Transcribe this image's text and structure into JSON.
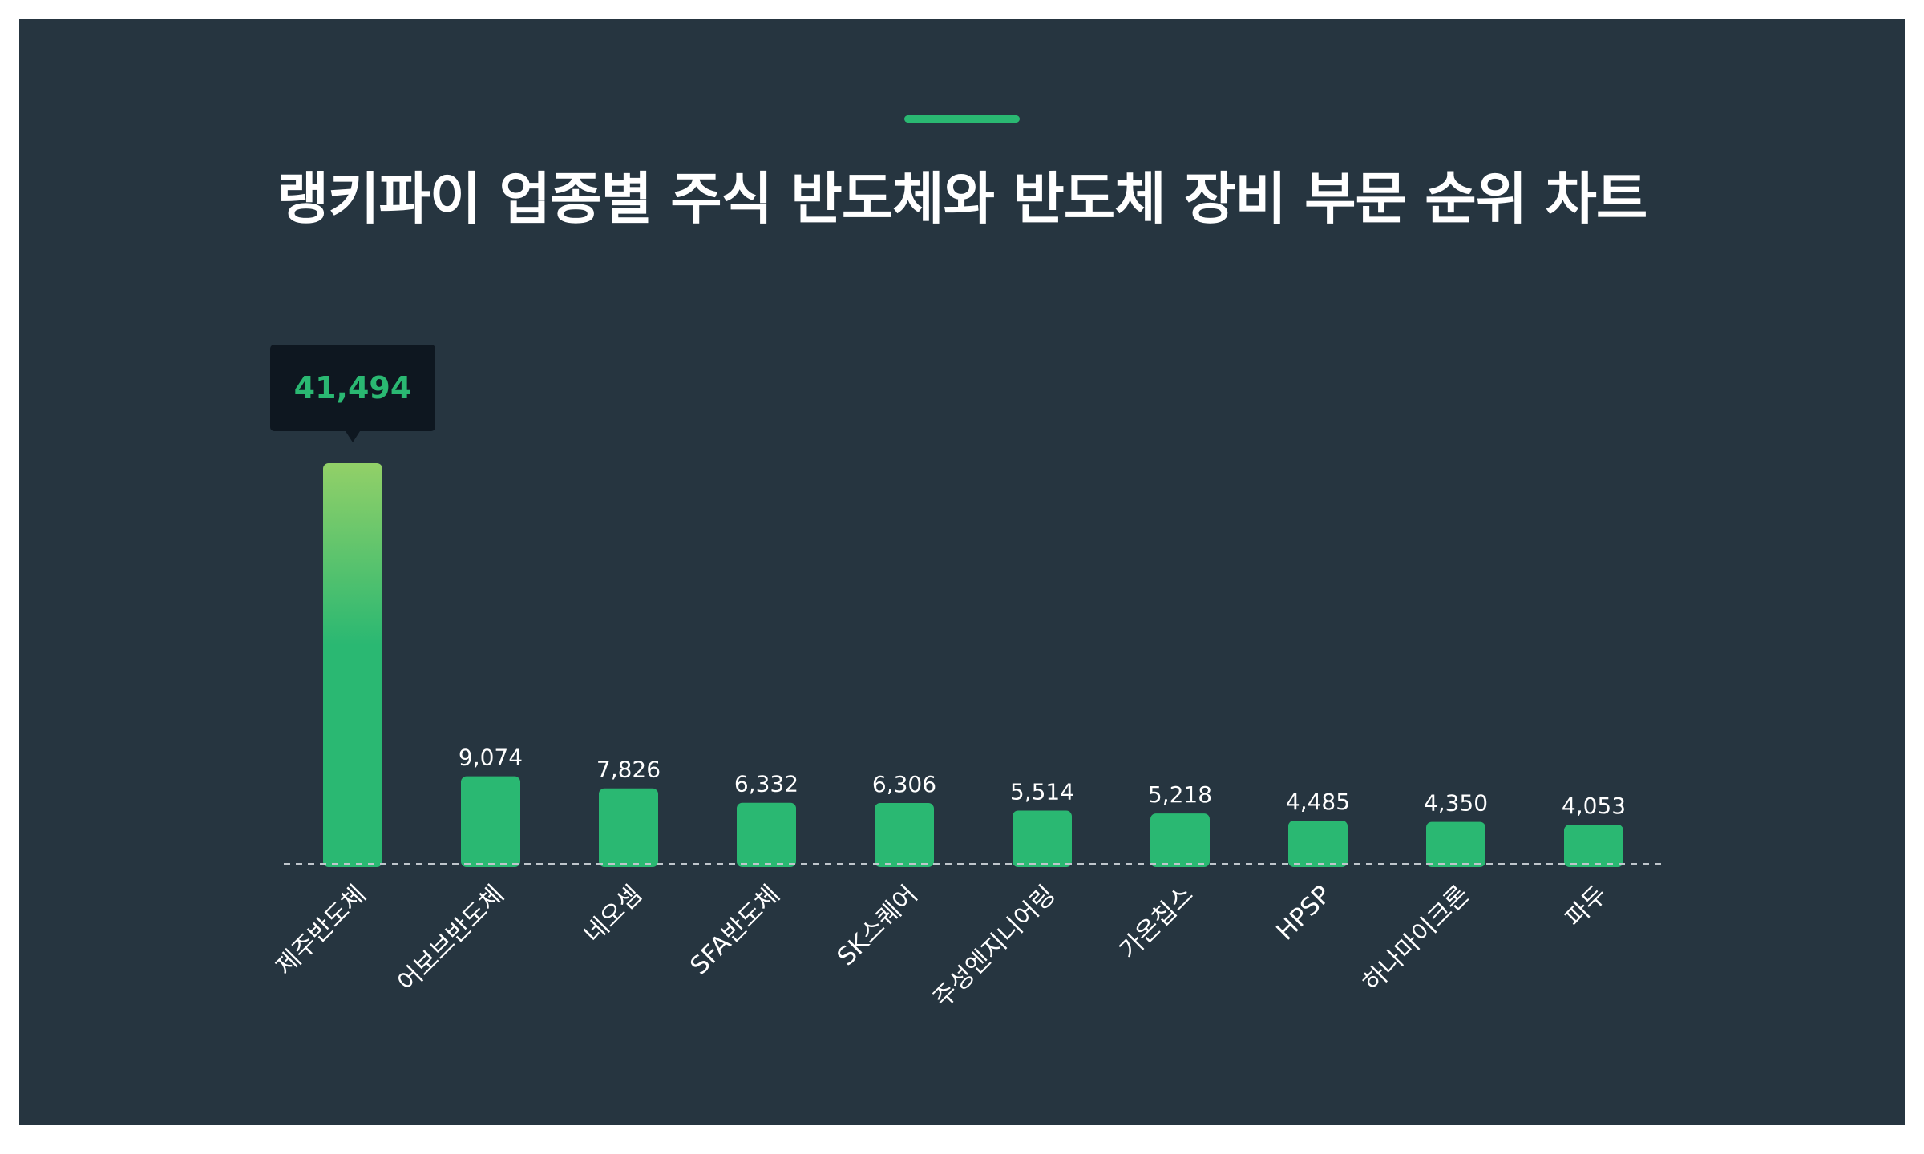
{
  "colors": {
    "background": "#263540",
    "bar": "#2ab872",
    "bar_highlight_top": "#92d068",
    "tooltip_bg": "#0e1720",
    "tooltip_text": "#2ab872",
    "accent": "#2ab872",
    "baseline": "#bfc6cc"
  },
  "chart_data": {
    "type": "bar",
    "title": "랭키파이 업종별 주식 반도체와 반도체 장비 부문 순위 차트",
    "xlabel": "",
    "ylabel": "",
    "ylim": [
      0,
      41494
    ],
    "grid": false,
    "legend": "none",
    "categories": [
      "제주반도체",
      "어보브반도체",
      "네오셈",
      "SFA반도체",
      "SK스퀘어",
      "주성엔지니어링",
      "가온칩스",
      "HPSP",
      "하나마이크론",
      "파두"
    ],
    "values": [
      41494,
      9074,
      7826,
      6332,
      6306,
      5514,
      5218,
      4485,
      4350,
      4053
    ],
    "value_labels": [
      "41,494",
      "9,074",
      "7,826",
      "6,332",
      "6,306",
      "5,514",
      "5,218",
      "4,485",
      "4,350",
      "4,053"
    ],
    "highlight_index": 0
  }
}
